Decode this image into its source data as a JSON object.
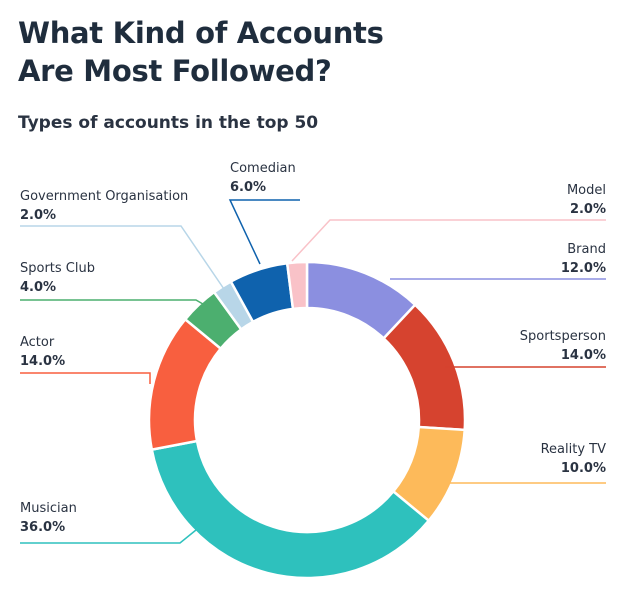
{
  "header": {
    "title": "What Kind of Accounts\nAre Most Followed?",
    "subtitle": "Types of accounts in the top 50"
  },
  "chart_data": {
    "type": "pie",
    "donut": true,
    "legend": "none",
    "slices": [
      {
        "name": "Brand",
        "value": 12.0,
        "label": "12.0%",
        "color": "#8b8fe0",
        "side": "right"
      },
      {
        "name": "Sportsperson",
        "value": 14.0,
        "label": "14.0%",
        "color": "#d6432f",
        "side": "right"
      },
      {
        "name": "Reality TV",
        "value": 10.0,
        "label": "10.0%",
        "color": "#fdba5a",
        "side": "right"
      },
      {
        "name": "Musician",
        "value": 36.0,
        "label": "36.0%",
        "color": "#2ec1bd",
        "side": "left"
      },
      {
        "name": "Actor",
        "value": 14.0,
        "label": "14.0%",
        "color": "#f85f3f",
        "side": "left"
      },
      {
        "name": "Sports Club",
        "value": 4.0,
        "label": "4.0%",
        "color": "#4caf6f",
        "side": "left"
      },
      {
        "name": "Government Organisation",
        "value": 2.0,
        "label": "2.0%",
        "color": "#b8d6e8",
        "side": "left"
      },
      {
        "name": "Comedian",
        "value": 6.0,
        "label": "6.0%",
        "color": "#0f62ad",
        "side": "top"
      },
      {
        "name": "Model",
        "value": 2.0,
        "label": "2.0%",
        "color": "#f9c2c8",
        "side": "right"
      }
    ]
  }
}
